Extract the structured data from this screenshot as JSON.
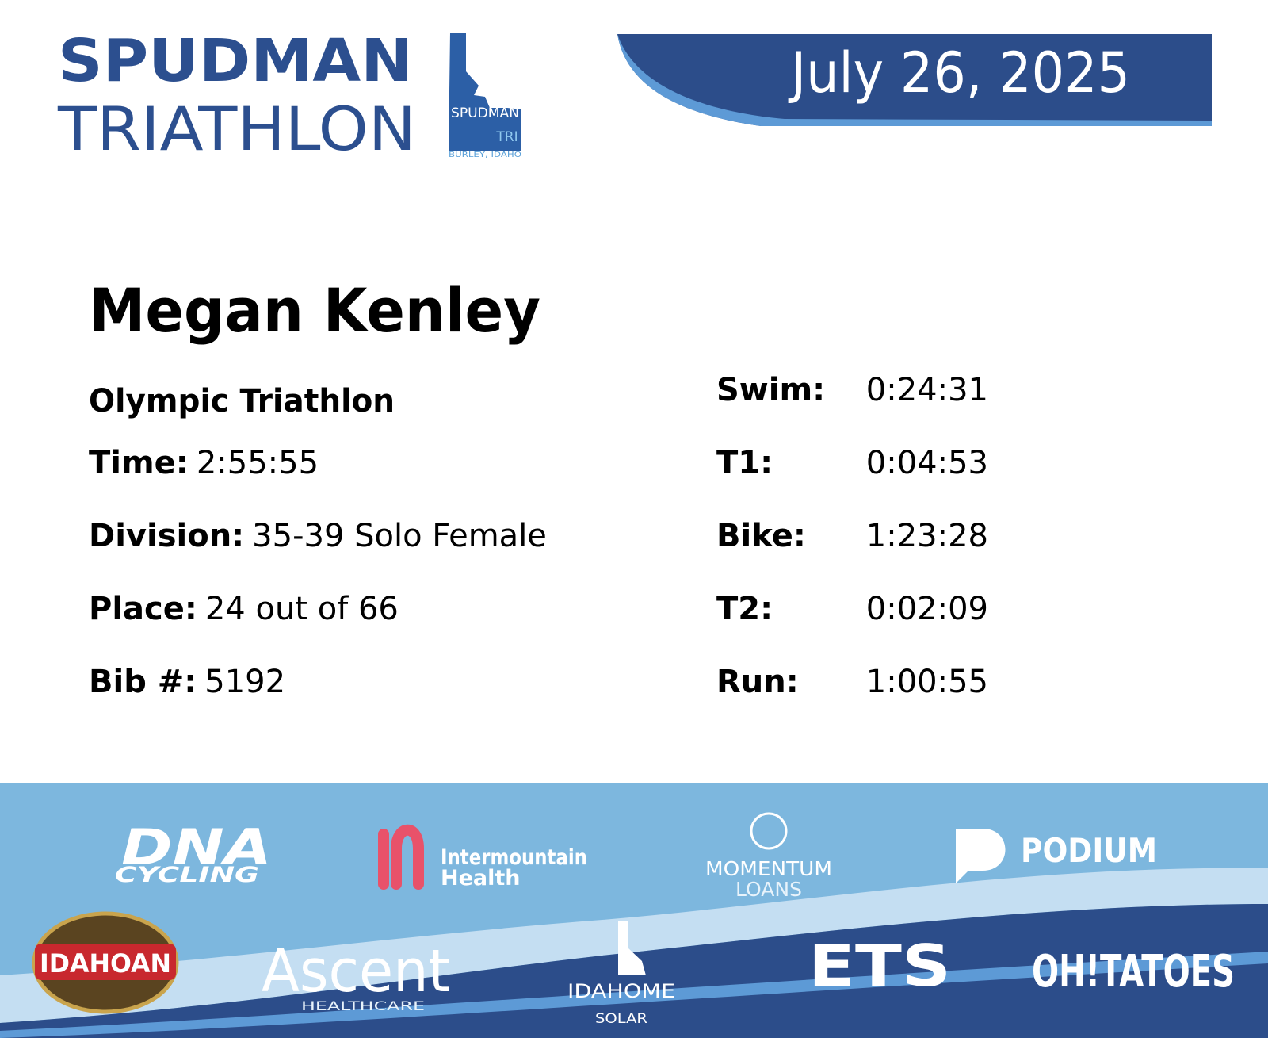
{
  "header": {
    "logo": {
      "line1": "SPUDMAN",
      "line2": "TRIATHLON",
      "badge_top": "SPUDMAN",
      "badge_tri": "TRI",
      "badge_location": "BURLEY, IDAHO"
    },
    "date": "July 26, 2025"
  },
  "athlete": {
    "name": "Megan Kenley",
    "event": "Olympic Triathlon",
    "details": [
      {
        "label": "Time:",
        "value": "2:55:55"
      },
      {
        "label": "Division:",
        "value": "35-39 Solo Female"
      },
      {
        "label": "Place:",
        "value": "24 out of 66"
      },
      {
        "label": "Bib #:",
        "value": "5192"
      }
    ],
    "splits": [
      {
        "label": "Swim:",
        "value": "0:24:31"
      },
      {
        "label": "T1:",
        "value": "0:04:53"
      },
      {
        "label": "Bike:",
        "value": "1:23:28"
      },
      {
        "label": "T2:",
        "value": "0:02:09"
      },
      {
        "label": "Run:",
        "value": "1:00:55"
      }
    ]
  },
  "sponsors": [
    {
      "name": "DNA",
      "subtitle": "CYCLING"
    },
    {
      "name": "Intermountain",
      "subtitle": "Health"
    },
    {
      "name": "MOMENTUM",
      "subtitle": "LOANS"
    },
    {
      "name": "PODIUM"
    },
    {
      "name": "IDAHOAN"
    },
    {
      "name": "Ascent",
      "subtitle": "HEALTHCARE"
    },
    {
      "name": "IDAHOME",
      "subtitle": "SOLAR"
    },
    {
      "name": "ETS"
    },
    {
      "name": "OH!TATOES"
    }
  ]
}
